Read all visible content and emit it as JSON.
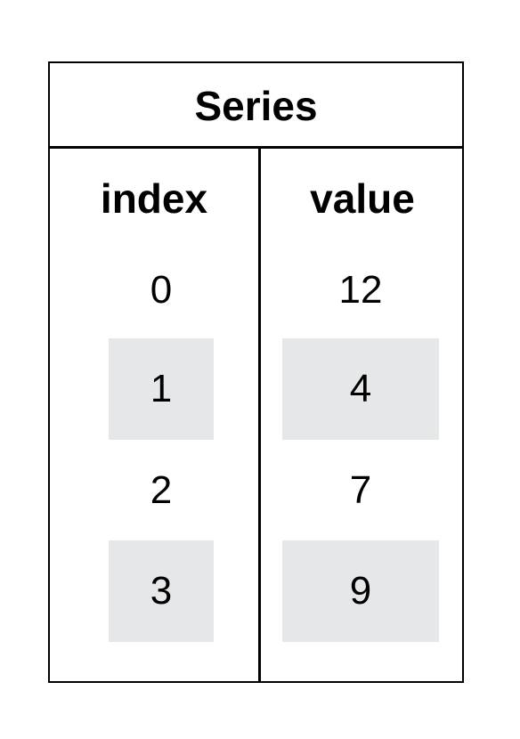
{
  "title": "Series",
  "columns": {
    "index": "index",
    "value": "value"
  },
  "rows": [
    {
      "index": "0",
      "value": "12",
      "shaded": false
    },
    {
      "index": "1",
      "value": "4",
      "shaded": true
    },
    {
      "index": "2",
      "value": "7",
      "shaded": false
    },
    {
      "index": "3",
      "value": "9",
      "shaded": true
    }
  ],
  "colors": {
    "border": "#000000",
    "shade": "#e6e7e8",
    "background": "#ffffff"
  }
}
